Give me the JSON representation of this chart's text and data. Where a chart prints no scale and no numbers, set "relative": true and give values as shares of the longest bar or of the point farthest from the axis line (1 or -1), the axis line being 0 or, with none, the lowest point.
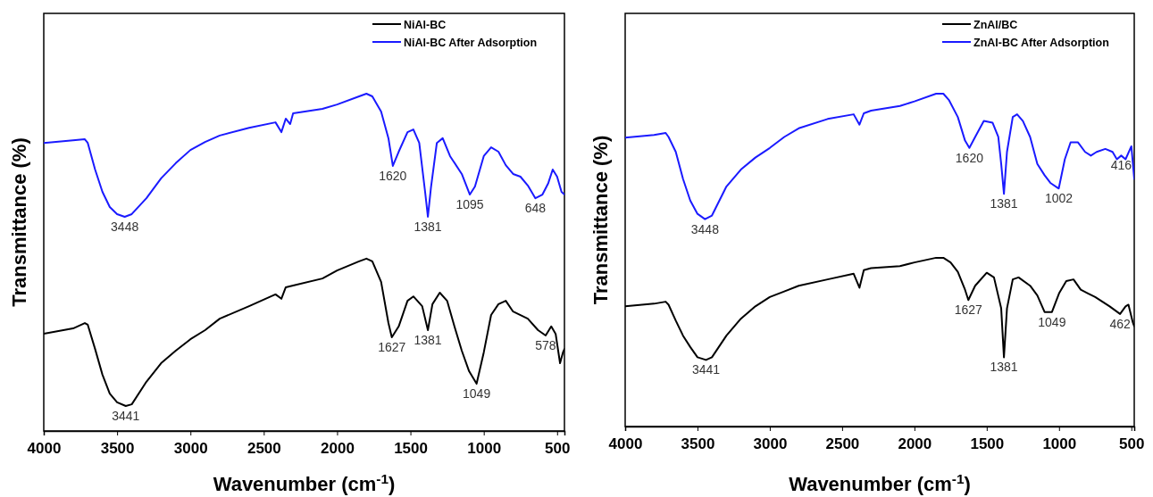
{
  "chart_data": [
    {
      "type": "line",
      "xlabel": "Wavenumber (cm$^{-1}$)",
      "ylabel": "Transmittance (%)",
      "relative": true,
      "xlim": [
        4000,
        450
      ],
      "xticks": [
        4000,
        3500,
        3000,
        2500,
        2000,
        1500,
        1000,
        500
      ],
      "tick_labels": "x",
      "legend": "top right",
      "grid": false,
      "marker": "none",
      "line_style": "solid",
      "series": [
        {
          "name": "NiAl-BC",
          "color": "#000000",
          "x": [
            4000,
            3800,
            3720,
            3700,
            3650,
            3600,
            3550,
            3500,
            3441,
            3400,
            3300,
            3200,
            3100,
            3000,
            2900,
            2800,
            2600,
            2420,
            2380,
            2350,
            2300,
            2100,
            2000,
            1850,
            1800,
            1760,
            1700,
            1650,
            1627,
            1580,
            1520,
            1480,
            1420,
            1381,
            1350,
            1300,
            1250,
            1200,
            1150,
            1100,
            1049,
            1000,
            950,
            900,
            850,
            800,
            700,
            630,
            578,
            540,
            510,
            480,
            460,
            450
          ],
          "values": [
            0.288,
            0.304,
            0.32,
            0.315,
            0.243,
            0.167,
            0.111,
            0.085,
            0.074,
            0.079,
            0.146,
            0.201,
            0.238,
            0.272,
            0.299,
            0.333,
            0.37,
            0.405,
            0.392,
            0.426,
            0.431,
            0.452,
            0.476,
            0.503,
            0.511,
            0.503,
            0.442,
            0.32,
            0.278,
            0.31,
            0.386,
            0.399,
            0.37,
            0.299,
            0.376,
            0.41,
            0.386,
            0.31,
            0.238,
            0.177,
            0.14,
            0.233,
            0.344,
            0.376,
            0.386,
            0.354,
            0.333,
            0.299,
            0.283,
            0.31,
            0.288,
            0.201,
            0.233,
            0.243
          ]
        },
        {
          "name": "NiAl-BC After Adsorption",
          "color": "#1a1aff",
          "x": [
            4000,
            3800,
            3720,
            3700,
            3650,
            3600,
            3550,
            3500,
            3448,
            3400,
            3300,
            3200,
            3100,
            3000,
            2900,
            2800,
            2600,
            2420,
            2380,
            2350,
            2320,
            2300,
            2100,
            2000,
            1850,
            1800,
            1760,
            1700,
            1650,
            1620,
            1580,
            1520,
            1480,
            1440,
            1400,
            1381,
            1360,
            1320,
            1280,
            1230,
            1150,
            1095,
            1060,
            1000,
            950,
            900,
            850,
            800,
            750,
            700,
            648,
            600,
            560,
            530,
            500,
            470,
            450
          ],
          "values": [
            0.854,
            0.862,
            0.865,
            0.854,
            0.775,
            0.709,
            0.664,
            0.643,
            0.635,
            0.643,
            0.69,
            0.749,
            0.794,
            0.833,
            0.857,
            0.876,
            0.899,
            0.915,
            0.886,
            0.926,
            0.91,
            0.942,
            0.955,
            0.968,
            0.992,
            1,
            0.992,
            0.947,
            0.868,
            0.786,
            0.828,
            0.886,
            0.894,
            0.854,
            0.709,
            0.635,
            0.722,
            0.854,
            0.868,
            0.815,
            0.762,
            0.701,
            0.725,
            0.815,
            0.841,
            0.828,
            0.788,
            0.762,
            0.754,
            0.728,
            0.69,
            0.701,
            0.735,
            0.775,
            0.754,
            0.709,
            0.701
          ]
        }
      ],
      "annotations": [
        {
          "text": "3441",
          "x": 3441,
          "y": 0.074
        },
        {
          "text": "1627",
          "x": 1627,
          "y": 0.278
        },
        {
          "text": "1381",
          "x": 1381,
          "y": 0.299
        },
        {
          "text": "1049",
          "x": 1049,
          "y": 0.14
        },
        {
          "text": "578",
          "x": 578,
          "y": 0.283
        },
        {
          "text": "3448",
          "x": 3448,
          "y": 0.635
        },
        {
          "text": "1620",
          "x": 1620,
          "y": 0.786
        },
        {
          "text": "1381",
          "x": 1381,
          "y": 0.635
        },
        {
          "text": "1095",
          "x": 1095,
          "y": 0.701
        },
        {
          "text": "648",
          "x": 648,
          "y": 0.69
        }
      ]
    },
    {
      "type": "line",
      "xlabel": "Wavenumber (cm$^{-1}$)",
      "ylabel": "Transmittance (%)",
      "relative": true,
      "xlim": [
        4000,
        480
      ],
      "xticks": [
        4000,
        3500,
        3000,
        2500,
        2000,
        1500,
        1000,
        500
      ],
      "tick_labels": "x",
      "legend": "top right",
      "grid": false,
      "marker": "none",
      "line_style": "solid",
      "series": [
        {
          "name": "ZnAl/BC",
          "color": "#000000",
          "x": [
            4000,
            3800,
            3720,
            3700,
            3650,
            3600,
            3550,
            3500,
            3441,
            3400,
            3300,
            3200,
            3100,
            3000,
            2900,
            2800,
            2600,
            2420,
            2380,
            2350,
            2300,
            2100,
            2000,
            1850,
            1800,
            1750,
            1700,
            1650,
            1627,
            1580,
            1500,
            1450,
            1400,
            1381,
            1360,
            1320,
            1280,
            1200,
            1150,
            1100,
            1049,
            1000,
            950,
            900,
            850,
            800,
            750,
            650,
            578,
            540,
            520,
            490,
            480
          ],
          "values": [
            0.361,
            0.369,
            0.375,
            0.366,
            0.318,
            0.273,
            0.239,
            0.208,
            0.2,
            0.208,
            0.273,
            0.324,
            0.361,
            0.389,
            0.406,
            0.423,
            0.442,
            0.459,
            0.417,
            0.47,
            0.476,
            0.482,
            0.493,
            0.507,
            0.507,
            0.493,
            0.465,
            0.411,
            0.38,
            0.423,
            0.462,
            0.448,
            0.355,
            0.208,
            0.355,
            0.442,
            0.448,
            0.423,
            0.394,
            0.344,
            0.344,
            0.4,
            0.437,
            0.442,
            0.411,
            0.4,
            0.389,
            0.361,
            0.338,
            0.361,
            0.366,
            0.313,
            0.301
          ]
        },
        {
          "name": "ZnAl-BC After Adsorption",
          "color": "#1a1aff",
          "x": [
            4000,
            3800,
            3720,
            3700,
            3650,
            3600,
            3550,
            3500,
            3448,
            3400,
            3300,
            3200,
            3100,
            3000,
            2900,
            2800,
            2600,
            2420,
            2380,
            2350,
            2300,
            2100,
            2000,
            1850,
            1800,
            1760,
            1700,
            1650,
            1620,
            1580,
            1520,
            1460,
            1420,
            1400,
            1381,
            1360,
            1320,
            1290,
            1250,
            1200,
            1150,
            1100,
            1060,
            1002,
            960,
            920,
            870,
            820,
            780,
            740,
            680,
            630,
            600,
            570,
            540,
            500,
            480
          ],
          "values": [
            0.868,
            0.876,
            0.882,
            0.87,
            0.825,
            0.744,
            0.679,
            0.639,
            0.623,
            0.634,
            0.721,
            0.772,
            0.808,
            0.837,
            0.87,
            0.896,
            0.924,
            0.938,
            0.907,
            0.941,
            0.949,
            0.963,
            0.977,
            1,
            1,
            0.98,
            0.93,
            0.859,
            0.837,
            0.87,
            0.918,
            0.913,
            0.87,
            0.789,
            0.699,
            0.825,
            0.93,
            0.938,
            0.918,
            0.87,
            0.789,
            0.755,
            0.732,
            0.715,
            0.803,
            0.854,
            0.854,
            0.825,
            0.814,
            0.825,
            0.834,
            0.825,
            0.803,
            0.814,
            0.803,
            0.842,
            0.744
          ]
        }
      ],
      "annotations": [
        {
          "text": "3441",
          "x": 3441,
          "y": 0.2
        },
        {
          "text": "1627",
          "x": 1627,
          "y": 0.38
        },
        {
          "text": "1381",
          "x": 1381,
          "y": 0.208
        },
        {
          "text": "1049",
          "x": 1049,
          "y": 0.344
        },
        {
          "text": "462",
          "x": 578,
          "y": 0.338
        },
        {
          "text": "3448",
          "x": 3448,
          "y": 0.623
        },
        {
          "text": "1620",
          "x": 1620,
          "y": 0.837
        },
        {
          "text": "1381",
          "x": 1381,
          "y": 0.699
        },
        {
          "text": "1002",
          "x": 1002,
          "y": 0.715
        },
        {
          "text": "416",
          "x": 570,
          "y": 0.814
        }
      ]
    }
  ]
}
